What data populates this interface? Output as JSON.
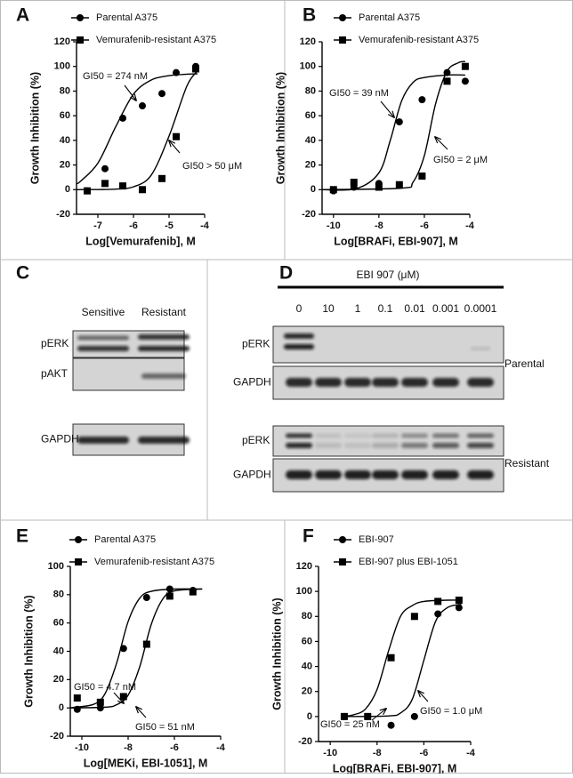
{
  "chart_data": [
    {
      "type": "scatter",
      "label": "A",
      "xlabel": "Log[Vemurafenib], M",
      "ylabel": "Growth Inhibition (%)",
      "xlim": [
        -7.6,
        -4
      ],
      "xticks": [
        -7,
        -6,
        -5,
        -4
      ],
      "ylim": [
        -20,
        120
      ],
      "yticks": [
        -20,
        0,
        20,
        40,
        60,
        80,
        100,
        120
      ],
      "legend": "upper left",
      "series": [
        {
          "name": "Parental A375",
          "color": "#000",
          "marker": "circle",
          "x": [
            -7.3,
            -6.8,
            -6.3,
            -5.75,
            -5.2,
            -4.8,
            -4.25
          ],
          "values": [
            -1,
            17,
            58,
            68,
            78,
            95,
            100
          ],
          "fit": {
            "x": [
              -7.6,
              -7.5,
              -7,
              -6.5,
              -6,
              -5.5,
              -5,
              -4.5,
              -4.2
            ],
            "values": [
              5,
              6.5,
              21.5,
              51,
              77.5,
              89,
              92.5,
              93.7,
              94
            ]
          }
        },
        {
          "name": "Vemurafenib-resistant A375",
          "color": "#000",
          "marker": "square",
          "x": [
            -7.3,
            -6.8,
            -6.3,
            -5.75,
            -5.2,
            -4.8,
            -4.25
          ],
          "values": [
            -1,
            5,
            3,
            0,
            9,
            43,
            98
          ],
          "fit": {
            "x": [
              -7.6,
              -7,
              -6.5,
              -6,
              -5.5,
              -5,
              -4.5,
              -4.2
            ],
            "values": [
              0,
              0.1,
              0.4,
              2.3,
              11.8,
              43.5,
              84,
              96.4
            ]
          }
        }
      ],
      "annotations": [
        "GI50 = 274 nM",
        "GI50 > 50 μM"
      ]
    },
    {
      "type": "scatter",
      "label": "B",
      "xlabel": "Log[BRAFi, EBI-907], M",
      "ylabel": "Growth Inhibition (%)",
      "xlim": [
        -10.5,
        -4
      ],
      "xticks": [
        -10,
        -8,
        -6,
        -4
      ],
      "ylim": [
        -20,
        120
      ],
      "yticks": [
        -20,
        0,
        20,
        40,
        60,
        80,
        100,
        120
      ],
      "legend": "upper left",
      "series": [
        {
          "name": "Parental A375",
          "color": "#000",
          "marker": "circle",
          "x": [
            -10,
            -9.1,
            -8,
            -7.1,
            -6.1,
            -5,
            -4.2
          ],
          "values": [
            -1,
            2,
            5,
            55,
            73,
            95,
            88
          ],
          "fit": {
            "x": [
              -10.5,
              -9,
              -8,
              -7.5,
              -7,
              -6.5,
              -6,
              -5,
              -4.2
            ],
            "values": [
              0,
              0.8,
              13.6,
              40,
              72,
              87,
              91,
              93,
              93
            ]
          }
        },
        {
          "name": "Vemurafenib-resistant A375",
          "color": "#000",
          "marker": "square",
          "x": [
            -10,
            -9.1,
            -8,
            -7.1,
            -6.1,
            -5,
            -4.2
          ],
          "values": [
            0,
            6,
            2,
            4,
            11,
            88,
            100
          ],
          "fit": {
            "x": [
              -10.5,
              -7,
              -6.5,
              -6,
              -5.5,
              -5,
              -4.5,
              -4.2
            ],
            "values": [
              0,
              1.2,
              6,
              27.6,
              70,
              96,
              103,
              104
            ]
          }
        }
      ],
      "annotations": [
        "GI50 = 39 nM",
        "GI50 = 2 μM"
      ]
    },
    {
      "type": "scatter",
      "label": "E",
      "xlabel": "Log[MEKi, EBI-1051], M",
      "ylabel": "Growth Inhibition (%)",
      "xlim": [
        -10.5,
        -4
      ],
      "xticks": [
        -10,
        -8,
        -6,
        -4
      ],
      "ylim": [
        -20,
        100
      ],
      "yticks": [
        -20,
        0,
        20,
        40,
        60,
        80,
        100
      ],
      "legend": "upper left",
      "series": [
        {
          "name": "Parental A375",
          "color": "#000",
          "marker": "circle",
          "x": [
            -10.2,
            -9.2,
            -8.2,
            -7.2,
            -6.2,
            -5.2
          ],
          "values": [
            -1,
            0,
            42,
            78,
            84,
            83
          ],
          "fit": {
            "x": [
              -10.5,
              -9.5,
              -9,
              -8.5,
              -8,
              -7.5,
              -7,
              -6,
              -4.8
            ],
            "values": [
              0.1,
              2.5,
              10,
              31.5,
              61,
              77.5,
              82.4,
              84,
              84
            ]
          }
        },
        {
          "name": "Vemurafenib-resistant A375",
          "color": "#000",
          "marker": "square",
          "x": [
            -10.2,
            -9.2,
            -8.2,
            -7.2,
            -6.2,
            -5.2
          ],
          "values": [
            7,
            4,
            8,
            45,
            79,
            82
          ],
          "fit": {
            "x": [
              -10.5,
              -9,
              -8.5,
              -8,
              -7.5,
              -7,
              -6.5,
              -6,
              -4.8
            ],
            "values": [
              0,
              0.5,
              2.2,
              9,
              29,
              59,
              77,
              82.7,
              84
            ]
          }
        }
      ],
      "annotations": [
        "GI50 = 4.7 nM",
        "GI50 = 51 nM"
      ]
    },
    {
      "type": "scatter",
      "label": "F",
      "xlabel": "Log[BRAFi, EBI-907], M",
      "ylabel": "Growth Inhibition (%)",
      "xlim": [
        -10.5,
        -4
      ],
      "xticks": [
        -10,
        -8,
        -6,
        -4
      ],
      "ylim": [
        -20,
        120
      ],
      "yticks": [
        -20,
        0,
        20,
        40,
        60,
        80,
        100,
        120
      ],
      "legend": "upper left",
      "series": [
        {
          "name": "EBI-907",
          "color": "#000",
          "marker": "circle",
          "x": [
            -9.4,
            -8.4,
            -7.4,
            -6.4,
            -5.4,
            -4.5
          ],
          "values": [
            0,
            0,
            -7,
            0,
            82,
            87
          ],
          "fit": {
            "x": [
              -9.4,
              -7.5,
              -7,
              -6.5,
              -6,
              -5.5,
              -5,
              -4.4
            ],
            "values": [
              0,
              0.5,
              2.8,
              13.6,
              45,
              76,
              87,
              89.8
            ]
          }
        },
        {
          "name": "EBI-907 plus EBI-1051",
          "color": "#000",
          "marker": "square",
          "x": [
            -9.4,
            -8.4,
            -7.4,
            -6.4,
            -5.4,
            -4.5
          ],
          "values": [
            0,
            0,
            47,
            80,
            92,
            93
          ],
          "fit": {
            "x": [
              -9.4,
              -9,
              -8.5,
              -8,
              -7.5,
              -7,
              -6.5,
              -6,
              -5,
              -4.4
            ],
            "values": [
              0.3,
              1.4,
              5.9,
              21.6,
              53,
              80,
              88.6,
              92,
              93,
              93
            ]
          }
        }
      ],
      "annotations": [
        "GI50 = 25 nM",
        "GI50 = 1.0 μM"
      ]
    }
  ],
  "blot_c": {
    "label": "C",
    "columns": [
      "Sensitive",
      "Resistant"
    ],
    "rows": [
      "pERK",
      "pAKT",
      "GAPDH"
    ]
  },
  "blot_d": {
    "label": "D",
    "title": "EBI 907 (μM)",
    "concentrations": [
      "0",
      "10",
      "1",
      "0.1",
      "0.01",
      "0.001",
      "0.0001"
    ],
    "rows": [
      "pERK",
      "GAPDH",
      "pERK",
      "GAPDH"
    ],
    "groups": [
      "Parental",
      "Resistant"
    ]
  }
}
